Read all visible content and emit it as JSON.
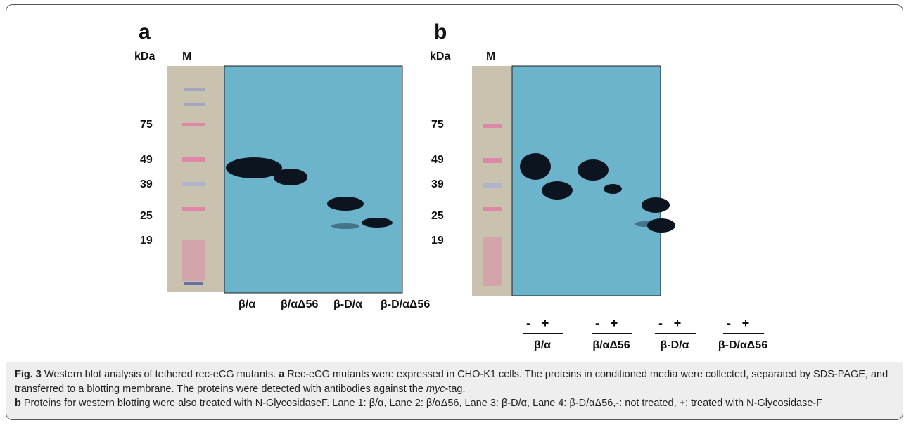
{
  "panels": [
    {
      "label": "a",
      "unit": "kDa",
      "marker": "M",
      "mw_labels": [
        "75",
        "49",
        "39",
        "25",
        "19"
      ],
      "lanes": [
        "β/α",
        "β/αΔ56",
        "β-D/α",
        "β-D/αΔ56"
      ]
    },
    {
      "label": "b",
      "unit": "kDa",
      "marker": "M",
      "mw_labels": [
        "75",
        "49",
        "39",
        "25",
        "19"
      ],
      "treatment": [
        "-",
        "+"
      ],
      "lanes": [
        "β/α",
        "β/αΔ56",
        "β-D/α",
        "β-D/αΔ56"
      ]
    }
  ],
  "caption": {
    "figure": "Fig. 3",
    "title": "Western blot analysis of tethered rec-eCG mutants.",
    "a_label": "a",
    "a_text": "Rec-eCG mutants were expressed in CHO-K1 cells. The proteins in conditioned media were collected, separated by SDS-PAGE, and transferred to a blotting membrane. The proteins were detected with antibodies against the",
    "a_italic": "myc",
    "a_end": "-tag.",
    "b_label": "b",
    "b_text": "Proteins for western blotting were also treated with N-GlycosidaseF. Lane 1: β/α, Lane 2: β/αΔ56, Lane 3: β-D/α, Lane 4: β-D/αΔ56,-: not treated, +: treated with N-Glycosidase-F"
  }
}
